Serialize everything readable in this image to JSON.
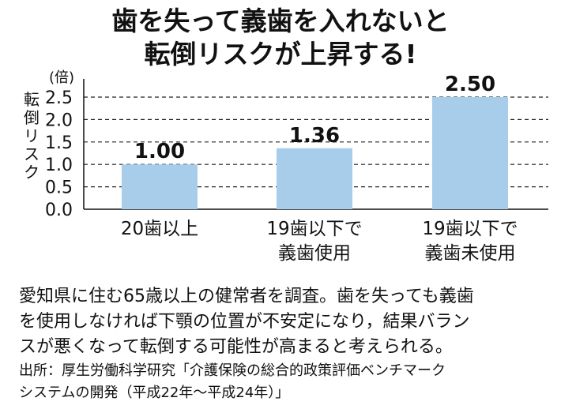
{
  "title": [
    "歯を失って義歯を入れないと",
    "転倒リスクが上昇する!"
  ],
  "chart_data": {
    "type": "bar",
    "unit": "(倍)",
    "ylabel": "転倒リスク",
    "categories": [
      [
        "20歯以上"
      ],
      [
        "19歯以下で",
        "義歯使用"
      ],
      [
        "19歯以下で",
        "義歯未使用"
      ]
    ],
    "values": [
      1.0,
      1.36,
      2.5
    ],
    "value_labels": [
      "1.00",
      "1.36",
      "2.50"
    ],
    "yticks": [
      "0.0",
      "0.5",
      "1.0",
      "1.5",
      "2.0",
      "2.5"
    ],
    "ylim": [
      0,
      2.5
    ],
    "grid": "dashed horizontal",
    "bar_color": "#a8cdea"
  },
  "description": [
    "愛知県に住む65歳以上の健常者を調査。歯を失っても義歯",
    "を使用しなければ下顎の位置が不安定になり，結果バラン",
    "スが悪くなって転倒する可能性が高まると考えられる。"
  ],
  "source": [
    "出所：厚生労働科学研究「介護保険の総合的政策評価ベンチマーク",
    "システムの開発（平成22年〜平成24年）」"
  ]
}
